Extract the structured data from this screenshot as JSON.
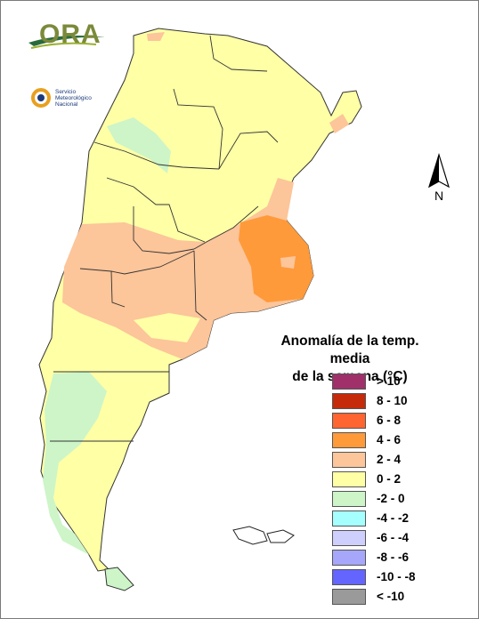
{
  "logo": {
    "ora_text": "ORA",
    "smn_text": "Servicio Meteorológico Nacional"
  },
  "compass": {
    "label": "N"
  },
  "legend": {
    "title_line1": "Anomalía de la temp. media",
    "title_line2": "de la semana (°C)",
    "items": [
      {
        "label": "> 10",
        "color": "#a0306a"
      },
      {
        "label": "8 - 10",
        "color": "#c52a0a"
      },
      {
        "label": "6 - 8",
        "color": "#ff6530"
      },
      {
        "label": "4 - 6",
        "color": "#ff9a3a"
      },
      {
        "label": "2 - 4",
        "color": "#fcc59a"
      },
      {
        "label": "0 - 2",
        "color": "#ffffa6"
      },
      {
        "label": "-2 - 0",
        "color": "#cdf5c8"
      },
      {
        "label": "-4 - -2",
        "color": "#a6ffff"
      },
      {
        "label": "-6 - -4",
        "color": "#cfcffd"
      },
      {
        "label": "-8 - -6",
        "color": "#a6a6fb"
      },
      {
        "label": "-10 - -8",
        "color": "#6464ff"
      },
      {
        "label": "< -10",
        "color": "#9a9a9a"
      }
    ]
  },
  "map_colors": {
    "c0_2": "#ffffa6",
    "c2_4": "#fcc59a",
    "c4_6": "#ff9a3a",
    "cm2_0": "#cdf5c8",
    "border": "#333333"
  }
}
